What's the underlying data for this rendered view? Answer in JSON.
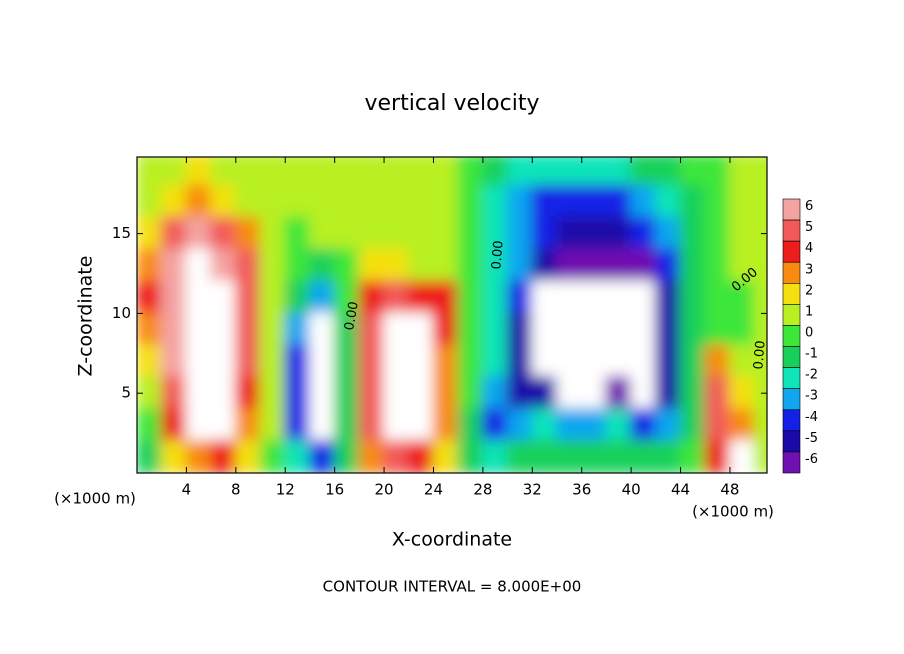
{
  "chart_data": {
    "type": "contour",
    "title": "vertical velocity",
    "x_label": "X-coordinate",
    "y_label": "Z-coordinate",
    "x_unit_labels": [
      "(×1000 m)",
      "(×1000 m)"
    ],
    "footer": "CONTOUR INTERVAL = 8.000E+00",
    "contour_labels": [
      "0.00",
      "0.00",
      "0.00",
      "0.00"
    ],
    "xlim": [
      0,
      51
    ],
    "ylim": [
      0,
      19.8
    ],
    "xticks": [
      4,
      8,
      12,
      16,
      20,
      24,
      28,
      32,
      36,
      40,
      44,
      48
    ],
    "yticks": [
      5,
      10,
      15
    ],
    "x": [
      1,
      3,
      5,
      7,
      9,
      11,
      13,
      15,
      17,
      19,
      21,
      23,
      25,
      27,
      29,
      31,
      33,
      35,
      37,
      39,
      41,
      43,
      45,
      47,
      49,
      51
    ],
    "z": [
      19,
      17,
      15,
      13,
      11,
      9,
      7,
      5,
      3,
      1
    ],
    "values": [
      [
        1,
        1,
        1.5,
        1,
        1,
        0.5,
        0.5,
        0.5,
        0.5,
        0.5,
        0.5,
        0.5,
        0.5,
        0,
        -1,
        -2,
        -2,
        -2,
        -2,
        -2,
        -1.5,
        -1,
        -0.5,
        0,
        0.5,
        0.5
      ],
      [
        1,
        2,
        3,
        2,
        1,
        0.5,
        0.5,
        0.5,
        0.5,
        0.5,
        0.5,
        0.5,
        0.5,
        0,
        -2,
        -3,
        -4,
        -4,
        -4,
        -4,
        -3,
        -2,
        -1,
        0,
        0.5,
        0.5
      ],
      [
        2,
        5,
        6,
        5,
        3,
        1,
        0,
        0.5,
        1,
        1,
        1,
        0.5,
        0.5,
        0,
        -2,
        -3,
        -4,
        -5,
        -5,
        -5,
        -4,
        -3,
        -1,
        0,
        0.5,
        0.5
      ],
      [
        3,
        6,
        8,
        7,
        5,
        1,
        0,
        -1,
        0,
        2,
        2,
        1,
        1,
        0,
        -2,
        -3,
        -5,
        -6,
        -6,
        -6,
        -6,
        -4,
        -1,
        0,
        0.5,
        0.5
      ],
      [
        4,
        7,
        8,
        8,
        5,
        1,
        -1,
        -3,
        0,
        4,
        5,
        4,
        4,
        0,
        -2,
        -4,
        -8,
        -8,
        -8,
        -8,
        -8,
        -5,
        -1,
        0,
        0,
        0.5
      ],
      [
        3,
        7,
        8,
        8,
        5,
        0.5,
        -3,
        -8,
        -1,
        5,
        8,
        8,
        4,
        0,
        -2,
        -5,
        -8,
        -8,
        -8,
        -8,
        -8,
        -5,
        -1,
        0,
        0,
        0.5
      ],
      [
        2,
        6,
        8,
        8,
        5,
        0.5,
        -4,
        -8,
        -1,
        5,
        8,
        8,
        3,
        0,
        -2,
        -5,
        -8,
        -8,
        -8,
        -8,
        -8,
        -5,
        -1,
        3,
        1,
        0.5
      ],
      [
        1,
        5,
        8,
        8,
        4,
        0.5,
        -4,
        -8,
        -1,
        5,
        8,
        8,
        3,
        0,
        -3,
        -5,
        -5,
        -8,
        -8,
        -6,
        -8,
        -5,
        -1,
        5,
        2,
        0.5
      ],
      [
        0,
        4,
        8,
        8,
        3,
        0.5,
        -4,
        -8,
        -1,
        5,
        8,
        8,
        3,
        -1,
        -4,
        -3,
        -2,
        -3,
        -3,
        -2,
        -4,
        -3,
        -1,
        5,
        3,
        0.5
      ],
      [
        -1,
        2,
        3,
        4,
        2,
        0,
        -2,
        -4,
        -1,
        3,
        5,
        4,
        2,
        -1,
        -2,
        -1,
        -1,
        -1,
        -1,
        -1,
        -1,
        -1,
        0,
        4,
        8,
        0.5
      ]
    ],
    "colorbar": {
      "levels": [
        6,
        5,
        4,
        3,
        2,
        1,
        0,
        -1,
        -2,
        -3,
        -4,
        -5,
        -6
      ],
      "colors": [
        "#f4a3a3",
        "#f25a5a",
        "#ee1d1d",
        "#f88b10",
        "#f4e010",
        "#b8f020",
        "#3ee63a",
        "#16d05a",
        "#10e4b8",
        "#10a6f0",
        "#1420e6",
        "#1a0aa8",
        "#7010b0"
      ]
    }
  }
}
